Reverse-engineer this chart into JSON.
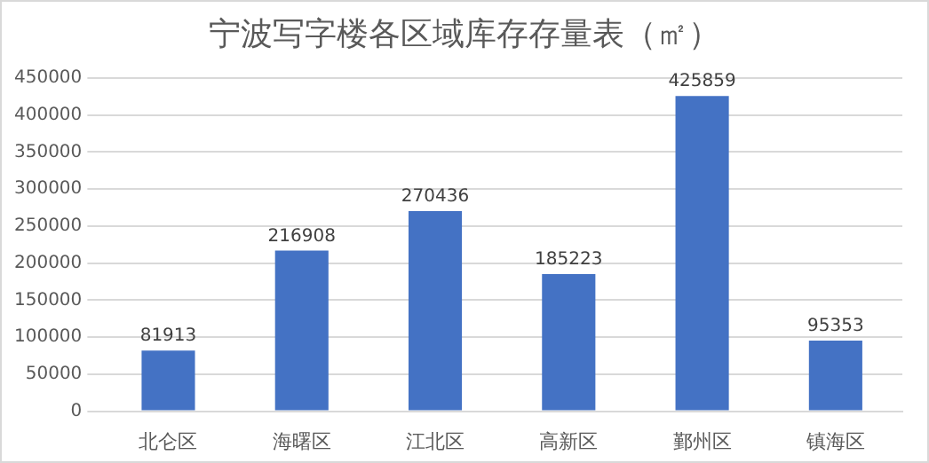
{
  "chart_data": {
    "type": "bar",
    "title": "宁波写字楼各区域库存存量表（㎡）",
    "categories": [
      "北仑区",
      "海曙区",
      "江北区",
      "高新区",
      "鄞州区",
      "镇海区"
    ],
    "values": [
      81913,
      216908,
      270436,
      185223,
      425859,
      95353
    ],
    "color": "#4472c4",
    "ylim": [
      0,
      450000
    ],
    "yticks": [
      0,
      50000,
      100000,
      150000,
      200000,
      250000,
      300000,
      350000,
      400000,
      450000
    ],
    "grid": "y",
    "data_labels": true
  }
}
